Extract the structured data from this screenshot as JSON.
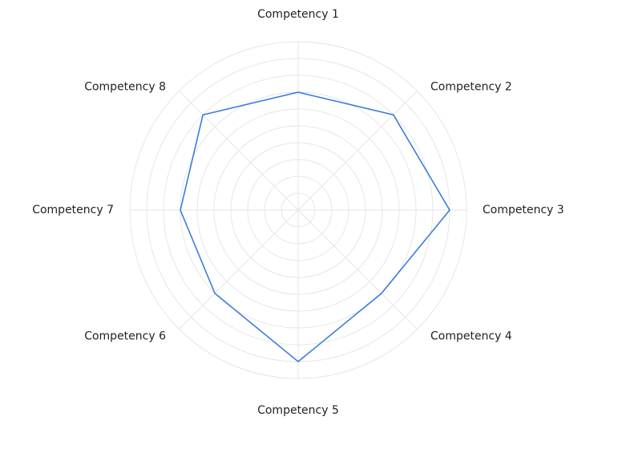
{
  "chart_data": {
    "type": "radar",
    "title": "",
    "categories": [
      "Competency 1",
      "Competency 2",
      "Competency 3",
      "Competency 4",
      "Competency 5",
      "Competency 6",
      "Competency 7",
      "Competency 8"
    ],
    "series": [
      {
        "name": "",
        "values": [
          7,
          8,
          9,
          7,
          9,
          7,
          7,
          8
        ]
      }
    ],
    "rlim": [
      0,
      10
    ],
    "grid_rings": 10,
    "grid": true,
    "legend": "none",
    "colors": {
      "series": "#3b7ddd",
      "grid": "#e6e6e6",
      "label": "#222222"
    }
  }
}
